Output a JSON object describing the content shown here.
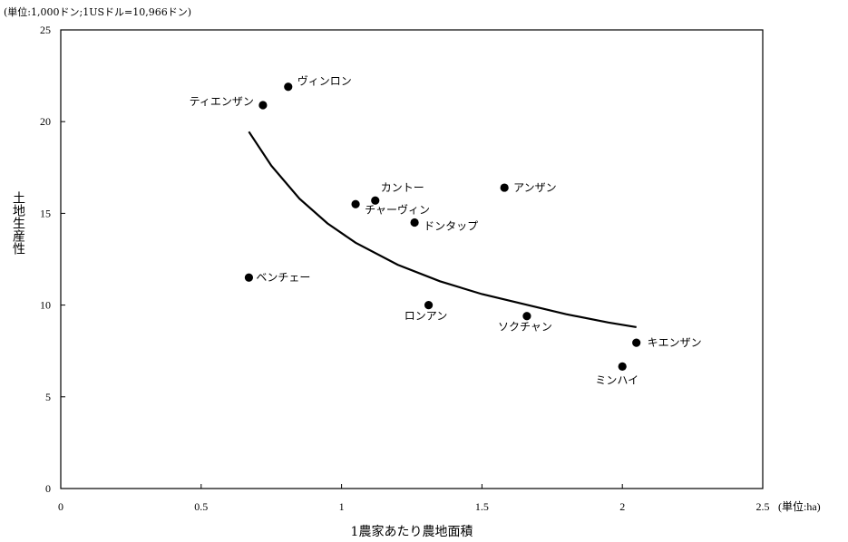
{
  "chart_data": {
    "type": "scatter",
    "unit_note": "(単位:1,000ドン;1USドル=10,966ドン)",
    "xlabel": "1農家あたり農地面積",
    "ylabel": "土地生産性",
    "x_unit": "(単位:ha)",
    "xlim": [
      0,
      2.5
    ],
    "ylim": [
      0,
      25
    ],
    "x_ticks": [
      "0",
      "0.5",
      "1",
      "1.5",
      "2",
      "2.5"
    ],
    "y_ticks": [
      "0",
      "5",
      "10",
      "15",
      "20",
      "25"
    ],
    "grid": false,
    "points": [
      {
        "label": "ヴィンロン",
        "x": 0.81,
        "y": 21.9
      },
      {
        "label": "ティエンザン",
        "x": 0.72,
        "y": 20.9
      },
      {
        "label": "アンザン",
        "x": 1.58,
        "y": 16.4
      },
      {
        "label": "カントー",
        "x": 1.12,
        "y": 15.7
      },
      {
        "label": "チャーヴィン",
        "x": 1.05,
        "y": 15.5
      },
      {
        "label": "ドンタップ",
        "x": 1.26,
        "y": 14.5
      },
      {
        "label": "ベンチェー",
        "x": 0.67,
        "y": 11.5
      },
      {
        "label": "ロンアン",
        "x": 1.31,
        "y": 10.0
      },
      {
        "label": "ソクチャン",
        "x": 1.66,
        "y": 9.4
      },
      {
        "label": "キエンザン",
        "x": 2.05,
        "y": 7.95
      },
      {
        "label": "ミンハイ",
        "x": 2.0,
        "y": 6.65
      }
    ],
    "trendline": {
      "type": "power",
      "x": [
        0.67,
        0.75,
        0.85,
        0.95,
        1.05,
        1.2,
        1.35,
        1.5,
        1.65,
        1.8,
        1.95,
        2.05
      ],
      "y": [
        19.45,
        17.6,
        15.8,
        14.45,
        13.4,
        12.2,
        11.3,
        10.6,
        10.05,
        9.5,
        9.05,
        8.8
      ]
    }
  }
}
